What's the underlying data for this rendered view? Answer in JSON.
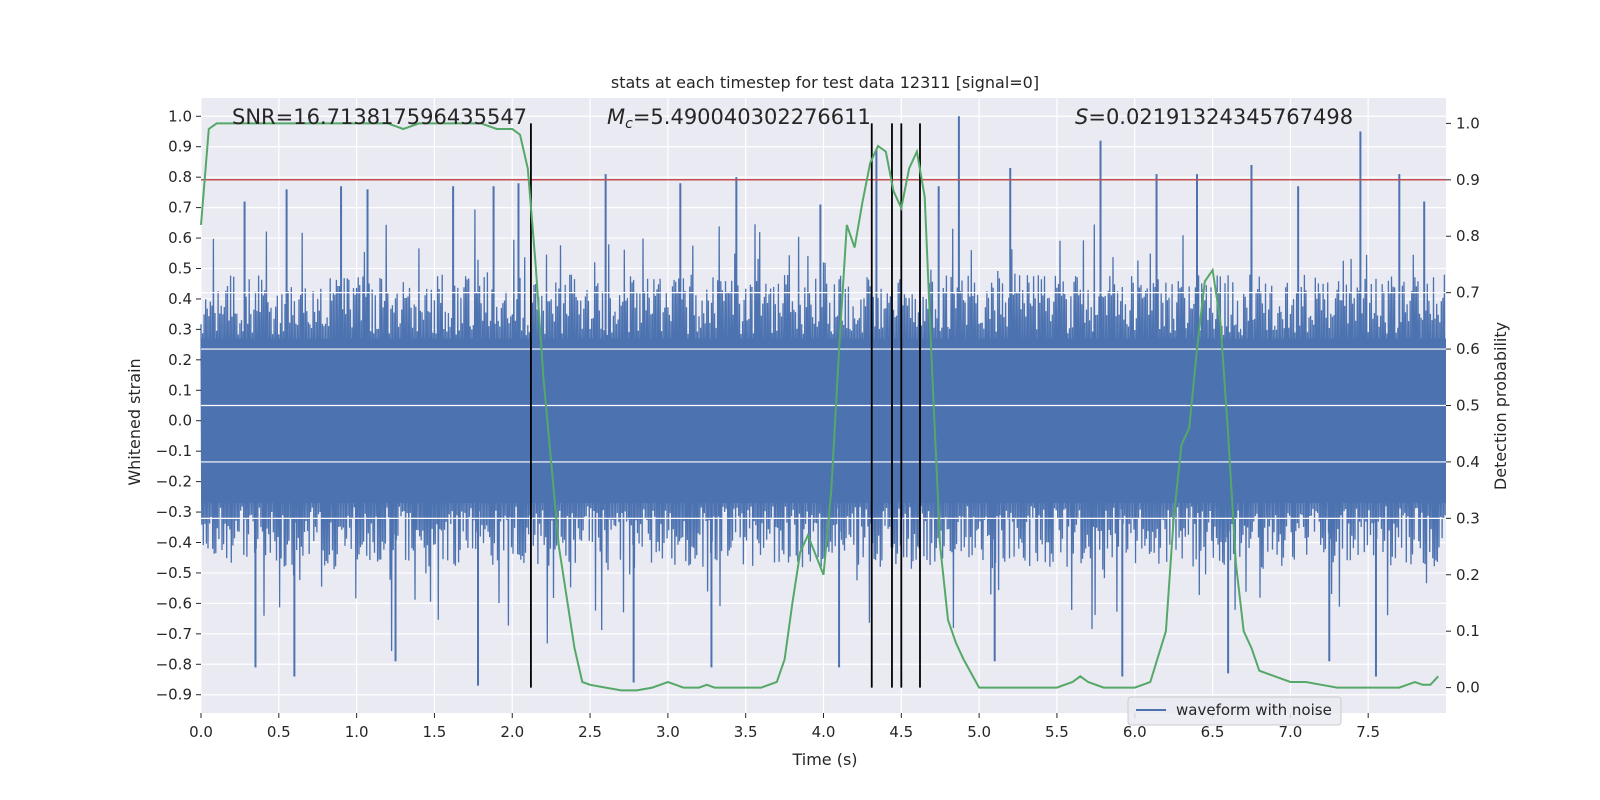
{
  "chart_data": {
    "type": "line",
    "title": "stats at each timestep for test data 12311 [signal=0]",
    "xlabel": "Time (s)",
    "ylabel": "Whitened strain",
    "y2label": "Detection probability",
    "xlim": [
      0,
      8.0
    ],
    "ylim": [
      -0.96,
      1.06
    ],
    "y2lim": [
      -0.045,
      1.045
    ],
    "xticks": [
      "0.0",
      "0.5",
      "1.0",
      "1.5",
      "2.0",
      "2.5",
      "3.0",
      "3.5",
      "4.0",
      "4.5",
      "5.0",
      "5.5",
      "6.0",
      "6.5",
      "7.0",
      "7.5"
    ],
    "yticks": [
      "1.0",
      "0.9",
      "0.8",
      "0.7",
      "0.6",
      "0.5",
      "0.4",
      "0.3",
      "0.2",
      "0.1",
      "0.0",
      "-0.1",
      "-0.2",
      "-0.3",
      "-0.4",
      "-0.5",
      "-0.6",
      "-0.7",
      "-0.8",
      "-0.9"
    ],
    "y2ticks": [
      "1.0",
      "0.9",
      "0.8",
      "0.7",
      "0.6",
      "0.5",
      "0.4",
      "0.3",
      "0.2",
      "0.1",
      "0.0"
    ],
    "annotations": {
      "snr": "SNR=16.713817596435547",
      "mc_symbol": "M",
      "mc_sub": "c",
      "mc_value": "=5.490040302276611",
      "s_symbol": "S",
      "s_value": "=0.021913243457674​98"
    },
    "threshold": {
      "y2": 0.9,
      "color": "#c44e52"
    },
    "vertical_lines": [
      2.12,
      4.31,
      4.44,
      4.5,
      4.62
    ],
    "series": [
      {
        "name": "waveform with noise",
        "color": "#4c72b0",
        "axis": "left",
        "envelope_note": "dense noise, approx amplitude +/-0.45 with spikes to 1.0 / -0.87",
        "spikes": [
          [
            0.28,
            0.72
          ],
          [
            0.35,
            -0.81
          ],
          [
            0.55,
            0.76
          ],
          [
            0.6,
            -0.84
          ],
          [
            0.9,
            0.77
          ],
          [
            1.07,
            0.76
          ],
          [
            1.25,
            -0.79
          ],
          [
            1.62,
            0.77
          ],
          [
            1.78,
            -0.87
          ],
          [
            1.88,
            0.77
          ],
          [
            2.04,
            0.78
          ],
          [
            2.6,
            0.81
          ],
          [
            2.78,
            -0.86
          ],
          [
            3.08,
            0.78
          ],
          [
            3.28,
            -0.81
          ],
          [
            3.44,
            0.8
          ],
          [
            3.98,
            0.71
          ],
          [
            4.1,
            -0.81
          ],
          [
            4.34,
            0.89
          ],
          [
            4.74,
            0.77
          ],
          [
            4.87,
            1.0
          ],
          [
            5.1,
            -0.79
          ],
          [
            5.2,
            0.83
          ],
          [
            5.78,
            0.92
          ],
          [
            5.92,
            -0.84
          ],
          [
            6.14,
            0.81
          ],
          [
            6.4,
            0.81
          ],
          [
            6.6,
            -0.83
          ],
          [
            6.75,
            0.84
          ],
          [
            7.05,
            0.77
          ],
          [
            7.25,
            -0.79
          ],
          [
            7.45,
            0.95
          ],
          [
            7.55,
            -0.84
          ],
          [
            7.7,
            0.81
          ],
          [
            7.86,
            0.72
          ]
        ]
      },
      {
        "name": "detection probability",
        "color": "#55a868",
        "axis": "right",
        "x": [
          0.0,
          0.05,
          0.1,
          0.2,
          0.4,
          0.6,
          0.8,
          1.0,
          1.1,
          1.2,
          1.3,
          1.4,
          1.6,
          1.8,
          1.9,
          2.0,
          2.05,
          2.1,
          2.15,
          2.2,
          2.3,
          2.4,
          2.45,
          2.5,
          2.6,
          2.7,
          2.8,
          2.9,
          3.0,
          3.05,
          3.1,
          3.2,
          3.25,
          3.3,
          3.4,
          3.5,
          3.6,
          3.7,
          3.75,
          3.8,
          3.85,
          3.9,
          4.0,
          4.05,
          4.1,
          4.15,
          4.2,
          4.25,
          4.3,
          4.35,
          4.4,
          4.45,
          4.5,
          4.55,
          4.6,
          4.65,
          4.7,
          4.75,
          4.8,
          4.85,
          4.9,
          5.0,
          5.1,
          5.2,
          5.3,
          5.5,
          5.6,
          5.65,
          5.7,
          5.8,
          5.9,
          6.0,
          6.1,
          6.2,
          6.25,
          6.3,
          6.35,
          6.4,
          6.45,
          6.5,
          6.55,
          6.6,
          6.65,
          6.7,
          6.75,
          6.8,
          6.9,
          7.0,
          7.1,
          7.2,
          7.3,
          7.5,
          7.6,
          7.7,
          7.75,
          7.8,
          7.85,
          7.9,
          7.95
        ],
        "values": [
          0.82,
          0.99,
          1.0,
          1.0,
          1.0,
          1.0,
          1.0,
          1.0,
          1.0,
          1.0,
          0.99,
          1.0,
          1.0,
          1.0,
          0.99,
          0.99,
          0.98,
          0.92,
          0.75,
          0.55,
          0.25,
          0.07,
          0.01,
          0.005,
          0.0,
          -0.005,
          -0.005,
          0.0,
          0.01,
          0.005,
          0.0,
          0.0,
          0.005,
          0.0,
          0.0,
          0.0,
          0.0,
          0.01,
          0.05,
          0.15,
          0.24,
          0.27,
          0.2,
          0.35,
          0.6,
          0.82,
          0.78,
          0.86,
          0.93,
          0.96,
          0.95,
          0.88,
          0.85,
          0.92,
          0.95,
          0.87,
          0.55,
          0.25,
          0.12,
          0.08,
          0.05,
          0.0,
          0.0,
          0.0,
          0.0,
          0.0,
          0.01,
          0.02,
          0.01,
          0.0,
          0.0,
          0.0,
          0.01,
          0.1,
          0.3,
          0.43,
          0.46,
          0.6,
          0.72,
          0.74,
          0.65,
          0.45,
          0.22,
          0.1,
          0.07,
          0.03,
          0.02,
          0.01,
          0.01,
          0.005,
          0.0,
          0.0,
          0.0,
          0.0,
          0.005,
          0.01,
          0.005,
          0.005,
          0.02
        ]
      }
    ],
    "legend": {
      "position": "lower-right",
      "entries": [
        "waveform with noise"
      ]
    }
  }
}
